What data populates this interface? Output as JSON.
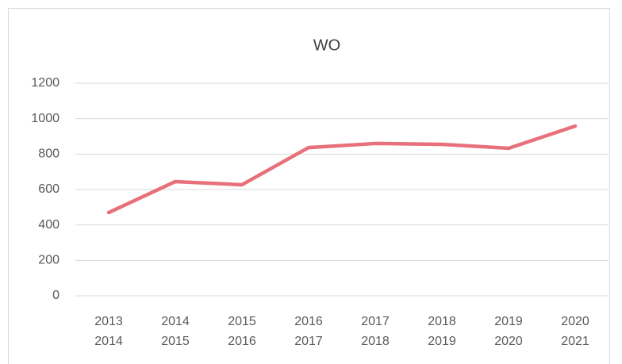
{
  "chart_data": {
    "type": "line",
    "title": "WO",
    "categories": [
      [
        "2013",
        "2014"
      ],
      [
        "2014",
        "2015"
      ],
      [
        "2015",
        "2016"
      ],
      [
        "2016",
        "2017"
      ],
      [
        "2017",
        "2018"
      ],
      [
        "2018",
        "2019"
      ],
      [
        "2019",
        "2020"
      ],
      [
        "2020",
        "2021"
      ]
    ],
    "values": [
      470,
      645,
      627,
      837,
      860,
      855,
      833,
      958
    ],
    "color": "#e8707a",
    "ylim": [
      0,
      1200
    ],
    "yticks": [
      0,
      200,
      400,
      600,
      800,
      1000,
      1200
    ],
    "grid": true
  }
}
